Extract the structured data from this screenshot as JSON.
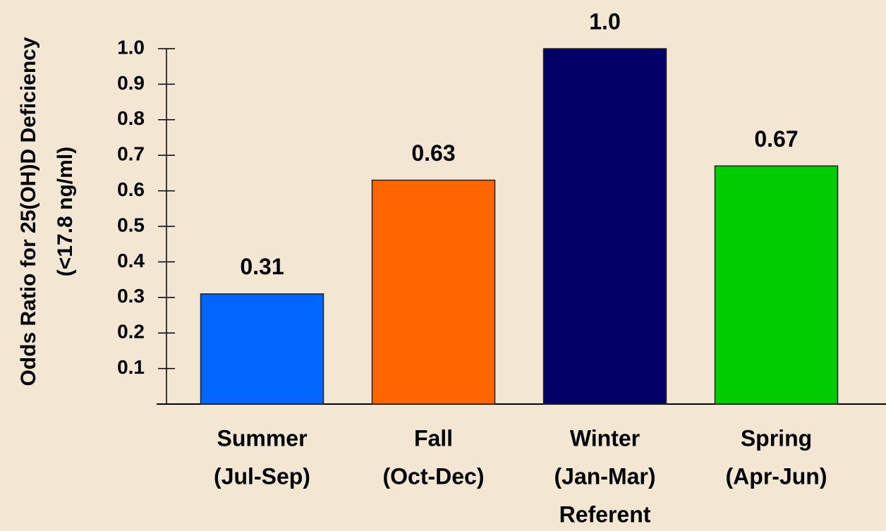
{
  "chart_data": {
    "type": "bar",
    "ylabel": [
      "Odds Ratio for 25(OH)D Deficiency",
      "(<17.8 ng/ml)"
    ],
    "categories": [
      [
        "Summer",
        "(Jul-Sep)"
      ],
      [
        "Fall",
        "(Oct-Dec)"
      ],
      [
        "Winter",
        "(Jan-Mar)",
        "Referent"
      ],
      [
        "Spring",
        "(Apr-Jun)"
      ]
    ],
    "values": [
      0.31,
      0.63,
      1.0,
      0.67
    ],
    "value_labels": [
      "0.31",
      "0.63",
      "1.0",
      "0.67"
    ],
    "colors": [
      "#0066ff",
      "#ff6600",
      "#000066",
      "#00cc00"
    ],
    "ylim": [
      0,
      1
    ],
    "yticks": [
      0.1,
      0.2,
      0.3,
      0.4,
      0.5,
      0.6,
      0.7,
      0.8,
      0.9,
      {
        "value": 1,
        "label": "1.0"
      }
    ],
    "grid": false
  }
}
